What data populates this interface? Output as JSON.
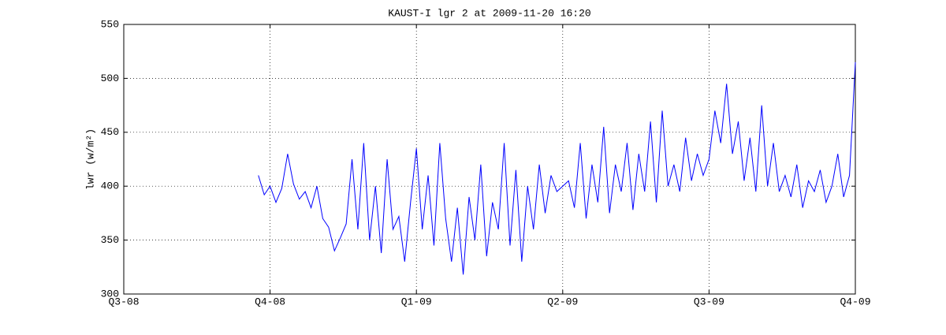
{
  "chart_data": {
    "type": "line",
    "title": "KAUST-I lgr 2 at 2009-11-20 16:20",
    "ylabel": "lwr (w/m²)",
    "color": "#0000ff",
    "grid": true,
    "xlim": [
      0,
      5
    ],
    "xticks": [
      {
        "value": 0,
        "label": "Q3-08"
      },
      {
        "value": 1,
        "label": "Q4-08"
      },
      {
        "value": 2,
        "label": "Q1-09"
      },
      {
        "value": 3,
        "label": "Q2-09"
      },
      {
        "value": 4,
        "label": "Q3-09"
      },
      {
        "value": 5,
        "label": "Q4-09"
      }
    ],
    "ylim": [
      300,
      550
    ],
    "yticks": [
      300,
      350,
      400,
      450,
      500,
      550
    ],
    "x": [
      0.92,
      0.96,
      1,
      1.04,
      1.08,
      1.12,
      1.16,
      1.2,
      1.24,
      1.28,
      1.32,
      1.36,
      1.4,
      1.44,
      1.48,
      1.52,
      1.56,
      1.6,
      1.64,
      1.68,
      1.72,
      1.76,
      1.8,
      1.84,
      1.88,
      1.92,
      1.96,
      2,
      2.04,
      2.08,
      2.12,
      2.16,
      2.2,
      2.24,
      2.28,
      2.32,
      2.36,
      2.4,
      2.44,
      2.48,
      2.52,
      2.56,
      2.6,
      2.64,
      2.68,
      2.72,
      2.76,
      2.8,
      2.84,
      2.88,
      2.92,
      2.96,
      3,
      3.04,
      3.08,
      3.12,
      3.16,
      3.2,
      3.24,
      3.28,
      3.32,
      3.36,
      3.4,
      3.44,
      3.48,
      3.52,
      3.56,
      3.6,
      3.64,
      3.68,
      3.72,
      3.76,
      3.8,
      3.84,
      3.88,
      3.92,
      3.96,
      4,
      4.04,
      4.08,
      4.12,
      4.16,
      4.2,
      4.24,
      4.28,
      4.32,
      4.36,
      4.4,
      4.44,
      4.48,
      4.52,
      4.56,
      4.6,
      4.64,
      4.68,
      4.72,
      4.76,
      4.8,
      4.84,
      4.88,
      4.92,
      4.96,
      5
    ],
    "values": [
      410,
      392,
      400,
      385,
      398,
      430,
      402,
      388,
      395,
      380,
      400,
      370,
      362,
      340,
      352,
      365,
      425,
      360,
      440,
      350,
      400,
      338,
      425,
      360,
      372,
      330,
      385,
      435,
      360,
      410,
      345,
      440,
      370,
      330,
      380,
      318,
      390,
      350,
      420,
      335,
      385,
      360,
      440,
      345,
      415,
      330,
      400,
      360,
      420,
      375,
      410,
      395,
      400,
      405,
      380,
      440,
      370,
      420,
      385,
      455,
      375,
      420,
      395,
      440,
      378,
      430,
      395,
      460,
      385,
      470,
      400,
      420,
      395,
      445,
      405,
      430,
      410,
      425,
      470,
      440,
      495,
      430,
      460,
      405,
      445,
      395,
      475,
      400,
      440,
      395,
      410,
      390,
      420,
      380,
      405,
      395,
      415,
      385,
      400,
      430,
      390,
      410,
      515
    ]
  }
}
